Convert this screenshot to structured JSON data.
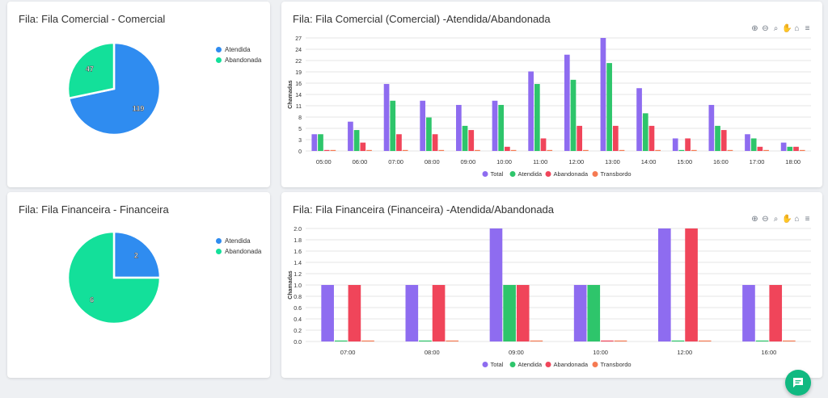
{
  "colors": {
    "total": "#8e6cf0",
    "atendida": "#2ec56b",
    "abandonada": "#f0455a",
    "transbordo": "#f57a52",
    "pie_atendida": "#2f8cf0",
    "pie_abandonada": "#13e09a"
  },
  "legend_labels": [
    "Total",
    "Atendida",
    "Abandonada",
    "Transbordo"
  ],
  "pie_comercial": {
    "title": "Fila: Fila Comercial - Comercial",
    "legend": [
      "Atendida",
      "Abandonada"
    ],
    "chart_data": {
      "type": "pie",
      "labels": [
        "Atendida",
        "Abandonada"
      ],
      "values": [
        119,
        47
      ],
      "value_labels": [
        "119",
        "47"
      ]
    }
  },
  "pie_financeira": {
    "title": "Fila: Fila Financeira - Financeira",
    "legend": [
      "Atendida",
      "Abandonada"
    ],
    "chart_data": {
      "type": "pie",
      "labels": [
        "Atendida",
        "Abandonada"
      ],
      "values": [
        2,
        6
      ],
      "value_labels": [
        "2",
        "6"
      ]
    }
  },
  "bar_comercial": {
    "title": "Fila: Fila Comercial (Comercial) -Atendida/Abandonada",
    "ylabel": "Chamadas",
    "chart_data": {
      "type": "bar",
      "categories": [
        "05:00",
        "06:00",
        "07:00",
        "08:00",
        "09:00",
        "10:00",
        "11:00",
        "12:00",
        "13:00",
        "14:00",
        "15:00",
        "16:00",
        "17:00",
        "18:00"
      ],
      "ylim": [
        0,
        27
      ],
      "yticks": [
        "0",
        "3",
        "5",
        "8",
        "11",
        "14",
        "16",
        "19",
        "22",
        "24",
        "27"
      ],
      "ytick_values": [
        0,
        2.7,
        5.4,
        8.1,
        10.8,
        13.5,
        16.2,
        18.9,
        21.6,
        24.3,
        27
      ],
      "series": [
        {
          "name": "Total",
          "values": [
            4,
            7,
            16,
            12,
            11,
            12,
            19,
            23,
            27,
            15,
            3,
            11,
            4,
            2
          ]
        },
        {
          "name": "Atendida",
          "values": [
            4,
            5,
            12,
            8,
            6,
            11,
            16,
            17,
            21,
            9,
            0,
            6,
            3,
            1
          ]
        },
        {
          "name": "Abandonada",
          "values": [
            0,
            2,
            4,
            4,
            5,
            1,
            3,
            6,
            6,
            6,
            3,
            5,
            1,
            1
          ]
        },
        {
          "name": "Transbordo",
          "values": [
            0,
            0,
            0,
            0,
            0,
            0,
            0,
            0,
            0,
            0,
            0,
            0,
            0,
            0
          ]
        }
      ]
    }
  },
  "bar_financeira": {
    "title": "Fila: Fila Financeira (Financeira) -Atendida/Abandonada",
    "ylabel": "Chamadas",
    "chart_data": {
      "type": "bar",
      "categories": [
        "07:00",
        "08:00",
        "09:00",
        "10:00",
        "12:00",
        "16:00"
      ],
      "ylim": [
        0,
        2
      ],
      "yticks": [
        "0.0",
        "0.2",
        "0.4",
        "0.6",
        "0.8",
        "1.0",
        "1.2",
        "1.4",
        "1.6",
        "1.8",
        "2.0"
      ],
      "ytick_values": [
        0,
        0.2,
        0.4,
        0.6,
        0.8,
        1.0,
        1.2,
        1.4,
        1.6,
        1.8,
        2.0
      ],
      "series": [
        {
          "name": "Total",
          "values": [
            1,
            1,
            2,
            1,
            2,
            1
          ]
        },
        {
          "name": "Atendida",
          "values": [
            0,
            0,
            1,
            1,
            0,
            0
          ]
        },
        {
          "name": "Abandonada",
          "values": [
            1,
            1,
            1,
            0,
            2,
            1
          ]
        },
        {
          "name": "Transbordo",
          "values": [
            0,
            0,
            0,
            0,
            0,
            0
          ]
        }
      ]
    }
  },
  "toolbar_icons": [
    "zoom-in-icon",
    "zoom-out-icon",
    "zoom-icon",
    "pan-icon",
    "home-icon",
    "menu-icon"
  ]
}
